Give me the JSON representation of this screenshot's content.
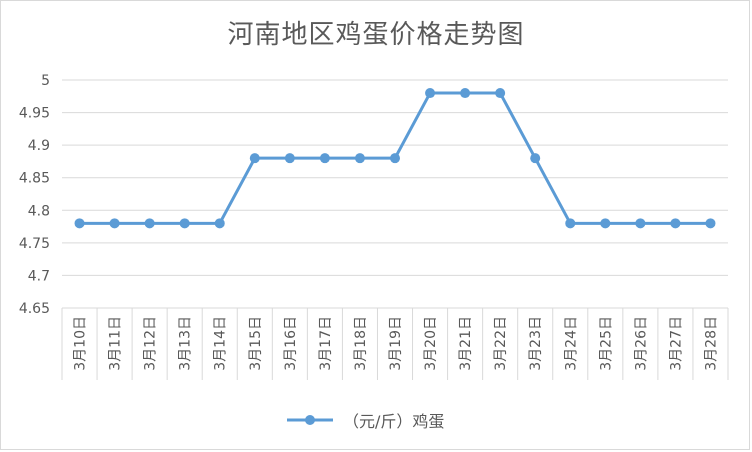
{
  "chart_data": {
    "type": "line",
    "title": "河南地区鸡蛋价格走势图",
    "categories": [
      "3月10日",
      "3月11日",
      "3月12日",
      "3月13日",
      "3月14日",
      "3月15日",
      "3月16日",
      "3月17日",
      "3月18日",
      "3月19日",
      "3月20日",
      "3月21日",
      "3月22日",
      "3月23日",
      "3月24日",
      "3月25日",
      "3月26日",
      "3月27日",
      "3月28日"
    ],
    "series": [
      {
        "name": "（元/斤）鸡蛋",
        "values": [
          4.78,
          4.78,
          4.78,
          4.78,
          4.78,
          4.88,
          4.88,
          4.88,
          4.88,
          4.88,
          4.98,
          4.98,
          4.98,
          4.88,
          4.78,
          4.78,
          4.78,
          4.78,
          4.78
        ]
      }
    ],
    "ylim": [
      4.65,
      5
    ],
    "yticks": [
      "4.65",
      "4.7",
      "4.75",
      "4.8",
      "4.85",
      "4.9",
      "4.95",
      "5"
    ],
    "grid": true,
    "legend": "bottom",
    "colors": {
      "line": "#5b9bd5",
      "grid": "#d9d9d9",
      "text": "#595959"
    }
  }
}
